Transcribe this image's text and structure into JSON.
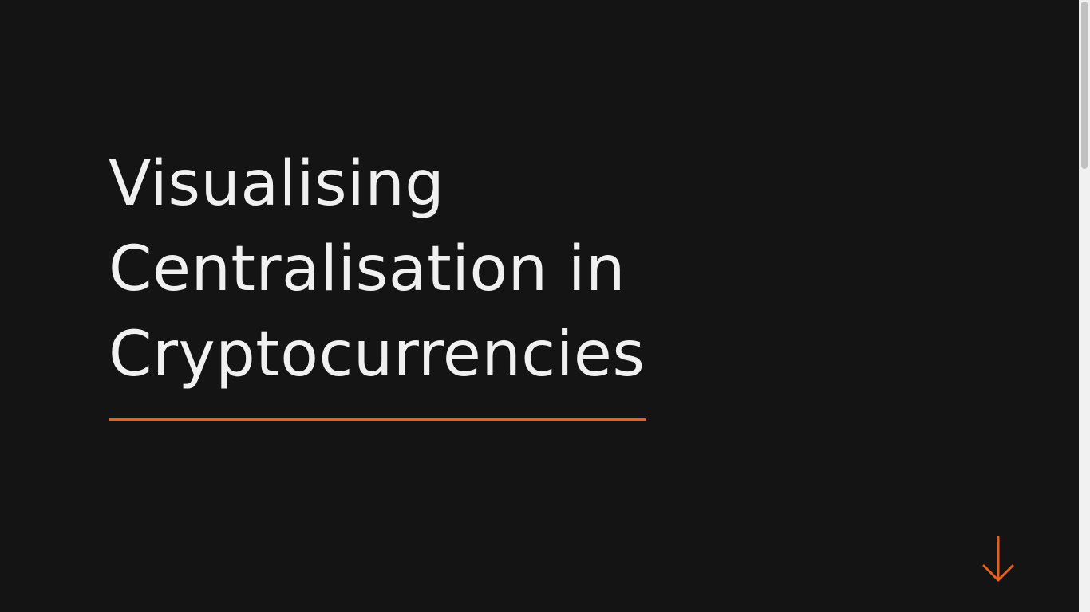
{
  "hero": {
    "title_lines": [
      "Visualising",
      "Centralisation in",
      "Cryptocurrencies"
    ]
  },
  "scroll_down": {
    "icon": "arrow-down-icon"
  },
  "colors": {
    "background": "#141414",
    "title_text": "#f0f0f0",
    "accent": "#e8601c"
  }
}
